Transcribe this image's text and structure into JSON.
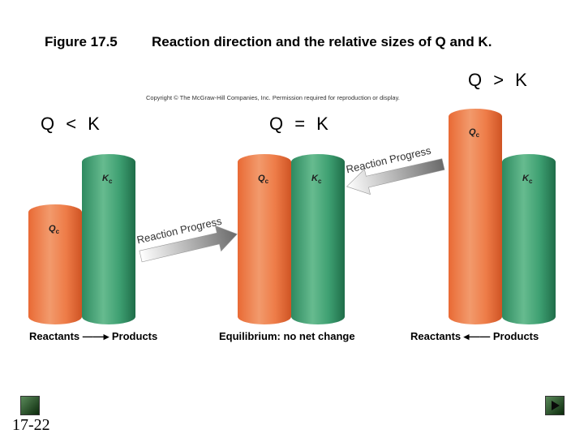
{
  "header": {
    "figure_label": "Figure 17.5",
    "title": "Reaction direction and the relative sizes of Q and K."
  },
  "copyright": "Copyright © The McGraw-Hill Companies, Inc. Permission required for reproduction or display.",
  "panels": [
    {
      "case": "Q < K",
      "bar_labels": {
        "q": "Q",
        "k": "K"
      },
      "bar_sub": "c",
      "baseline": "Reactants ——▸ Products",
      "arrow_label": "Reaction Progress"
    },
    {
      "case": "Q = K",
      "bar_labels": {
        "q": "Q",
        "k": "K"
      },
      "bar_sub": "c",
      "baseline": "Equilibrium: no net change"
    },
    {
      "case": "Q > K",
      "bar_labels": {
        "q": "Q",
        "k": "K"
      },
      "bar_sub": "c",
      "baseline": "Reactants ◂—— Products",
      "arrow_label": "Reaction Progress"
    }
  ],
  "colors": {
    "orange": "#ee7c48",
    "green": "#3ea072"
  },
  "slide_number": "17-22",
  "icons": {
    "prev": "prev-slide-icon",
    "next": "next-slide-icon"
  }
}
